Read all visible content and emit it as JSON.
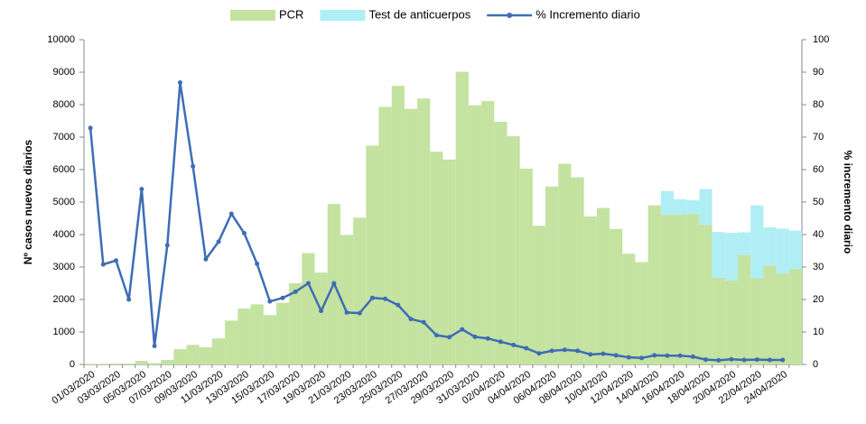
{
  "chart_data": {
    "type": "bar",
    "y_title": "Nº casos  nuevos diarios",
    "y2_title": "% incremento diario",
    "categories": [
      "01/03/2020",
      null,
      "03/03/2020",
      null,
      "05/03/2020",
      null,
      "07/03/2020",
      null,
      "09/03/2020",
      null,
      "11/03/2020",
      null,
      "13/03/2020",
      null,
      "15/03/2020",
      null,
      "17/03/2020",
      null,
      "19/03/2020",
      null,
      "21/03/2020",
      null,
      "23/03/2020",
      null,
      "25/03/2020",
      null,
      "27/03/2020",
      null,
      "29/03/2020",
      null,
      "31/03/2020",
      null,
      "02/04/2020",
      null,
      "04/04/2020",
      null,
      "06/04/2020",
      null,
      "08/04/2020",
      null,
      "10/04/2020",
      null,
      "12/04/2020",
      null,
      "14/04/2020",
      null,
      "16/04/2020",
      null,
      "18/04/2020",
      null,
      "20/04/2020",
      null,
      "22/04/2020",
      null,
      "24/04/2020",
      null
    ],
    "series": [
      {
        "name": "PCR",
        "type": "bar",
        "color": "#c4e2a0",
        "values": [
          20,
          20,
          30,
          30,
          110,
          40,
          140,
          470,
          600,
          530,
          800,
          1350,
          1720,
          1850,
          1520,
          1900,
          2500,
          3430,
          2830,
          4940,
          3990,
          4520,
          6740,
          7930,
          8580,
          7870,
          8190,
          6550,
          6310,
          9010,
          7980,
          8110,
          7470,
          7030,
          6030,
          4270,
          5480,
          6180,
          5760,
          4560,
          4820,
          4170,
          3410,
          3150,
          4900,
          4610,
          4610,
          4630,
          4300,
          2670,
          2590,
          3370,
          2650,
          3050,
          2800,
          2940
        ]
      },
      {
        "name": "Test de anticuerpos",
        "type": "bar",
        "color": "#b0eef6",
        "values": [
          0,
          0,
          0,
          0,
          0,
          0,
          0,
          0,
          0,
          0,
          0,
          0,
          0,
          0,
          0,
          0,
          0,
          0,
          0,
          0,
          0,
          0,
          0,
          0,
          0,
          0,
          0,
          0,
          0,
          0,
          0,
          0,
          0,
          0,
          0,
          0,
          0,
          0,
          0,
          0,
          0,
          0,
          0,
          0,
          0,
          730,
          480,
          430,
          1100,
          1410,
          1460,
          700,
          2250,
          1170,
          1380,
          1180
        ]
      },
      {
        "name": "% Incremento diario",
        "type": "line",
        "axis": "y2",
        "color": "#3e6db5",
        "values": [
          72.8,
          30.8,
          32,
          20,
          54,
          5.7,
          36.7,
          86.8,
          61,
          32.4,
          37.8,
          46.4,
          40.4,
          31,
          19.4,
          20.5,
          22.4,
          25,
          16.5,
          25,
          16,
          15.8,
          20.5,
          20.2,
          18.3,
          14,
          13,
          9,
          8.4,
          10.8,
          8.5,
          8,
          7,
          6,
          5,
          3.4,
          4.2,
          4.5,
          4.2,
          3.1,
          3.3,
          2.8,
          2.2,
          2,
          2.8,
          2.7,
          2.7,
          2.4,
          1.5,
          1.3,
          1.6,
          1.4,
          1.5,
          1.4,
          1.4,
          null
        ]
      }
    ],
    "ylim": [
      0,
      10000
    ],
    "yticks": [
      0,
      1000,
      2000,
      3000,
      4000,
      5000,
      6000,
      7000,
      8000,
      9000,
      10000
    ],
    "y2lim": [
      0,
      100
    ],
    "y2ticks": [
      0,
      10,
      20,
      30,
      40,
      50,
      60,
      70,
      80,
      90,
      100
    ],
    "grid": false,
    "legend": "top"
  }
}
